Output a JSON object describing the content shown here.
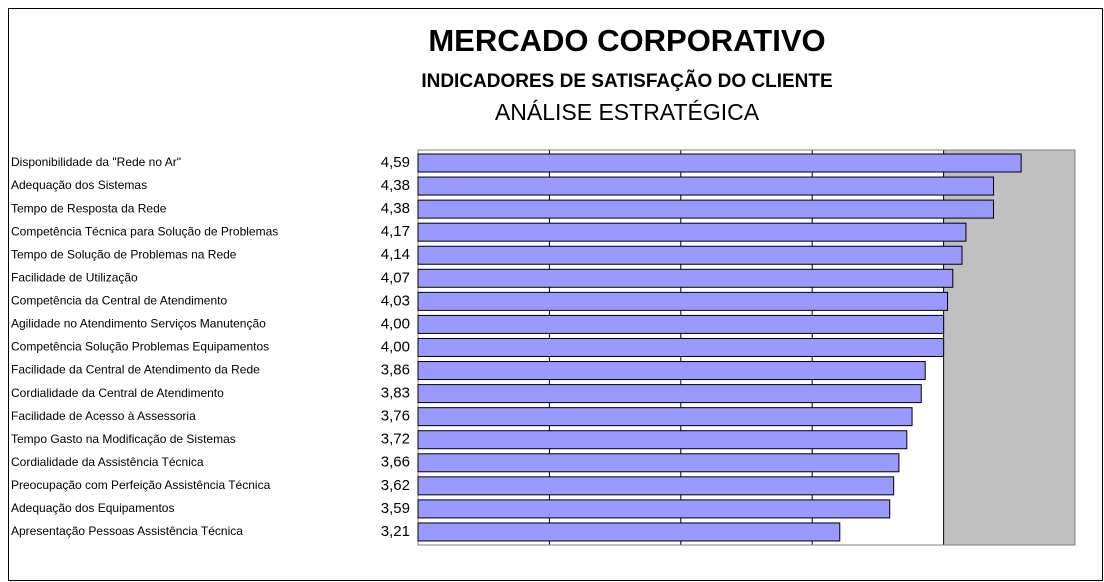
{
  "chart_data": {
    "type": "bar",
    "orientation": "horizontal",
    "title": "MERCADO CORPORATIVO",
    "subtitle": "INDICADORES DE SATISFAÇÃO DO CLIENTE",
    "caption": "ANÁLISE ESTRATÉGICA",
    "categories": [
      "Disponibilidade da \"Rede no Ar\"",
      "Adequação dos Sistemas",
      "Tempo de Resposta da Rede",
      "Competência Técnica para Solução de Problemas",
      "Tempo de Solução de Problemas na Rede",
      "Facilidade de Utilização",
      "Competência da Central de Atendimento",
      "Agilidade no Atendimento Serviços Manutenção",
      "Competência Solução Problemas Equipamentos",
      "Facilidade da Central de Atendimento da Rede",
      "Cordialidade da Central de Atendimento",
      "Facilidade de Acesso à Assessoria",
      "Tempo Gasto na Modificação de Sistemas",
      "Cordialidade da Assistência Técnica",
      "Preocupação com Perfeição Assistência Técnica",
      "Adequação dos Equipamentos",
      "Apresentação Pessoas Assistência Técnica"
    ],
    "values": [
      4.59,
      4.38,
      4.38,
      4.17,
      4.14,
      4.07,
      4.03,
      4.0,
      4.0,
      3.86,
      3.83,
      3.76,
      3.72,
      3.66,
      3.62,
      3.59,
      3.21
    ],
    "value_labels": [
      "4,59",
      "4,38",
      "4,38",
      "4,17",
      "4,14",
      "4,07",
      "4,03",
      "4,00",
      "4,00",
      "3,86",
      "3,83",
      "3,76",
      "3,72",
      "3,66",
      "3,62",
      "3,59",
      "3,21"
    ],
    "color": "#9999ff",
    "xlim": [
      0,
      5
    ],
    "xticks": [
      0,
      1,
      2,
      3,
      4,
      5
    ],
    "grid": true
  }
}
